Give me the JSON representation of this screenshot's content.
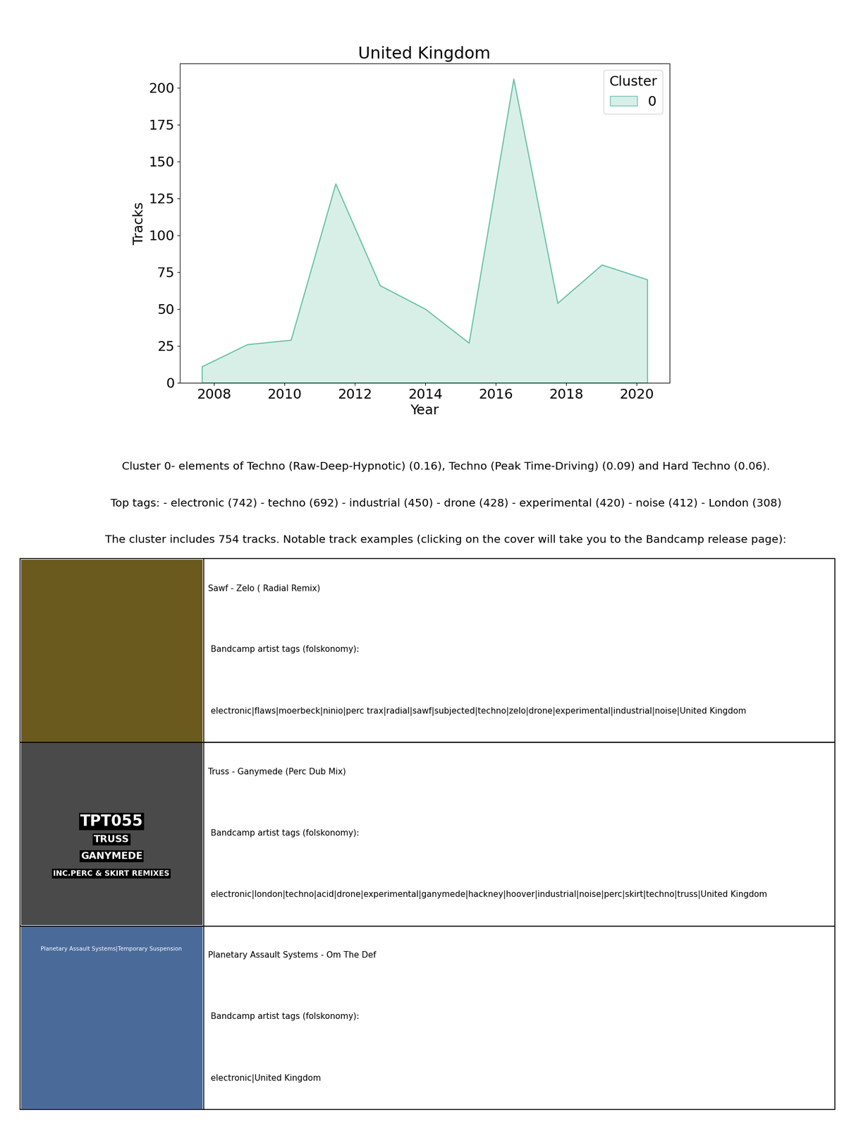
{
  "chart_data": {
    "type": "area",
    "title": "United Kingdom",
    "x_label": "Year",
    "y_label": "Tracks",
    "x": [
      2007.65,
      2008.94,
      2010.18,
      2011.45,
      2012.71,
      2014.0,
      2015.24,
      2016.51,
      2017.76,
      2019.02,
      2020.31
    ],
    "series": [
      {
        "name": "0",
        "color": "#66c2a5",
        "values": [
          11,
          26,
          29,
          135,
          66,
          50,
          27,
          206,
          54,
          80,
          70
        ]
      }
    ],
    "xlim": [
      2007.02,
      2020.94
    ],
    "ylim": [
      0,
      216.6
    ],
    "xticks": [
      2008,
      2010,
      2012,
      2014,
      2016,
      2018,
      2020
    ],
    "yticks": [
      0,
      25,
      50,
      75,
      100,
      125,
      150,
      175,
      200
    ],
    "legend": "upper right",
    "legend_title": "Cluster"
  },
  "document": {
    "description": [
      "Cluster 0- elements of Techno (Raw-Deep-Hypnotic) (0.16), Techno (Peak Time-Driving) (0.09) and Hard Techno (0.06).",
      "Top tags: - electronic (742) - techno (692) - industrial (450) - drone (428) - experimental (420) - noise (412) - London (308)",
      "The cluster includes 754 tracks. Notable track examples (clicking on the cover will take you to the Bandcamp release page):"
    ],
    "tracks": [
      {
        "title": "Sawf - Zelo ( Radial Remix)",
        "tags_label": "Bandcamp artist tags (folskonomy):",
        "tags": "electronic|flaws|moerbeck|ninio|perc trax|radial|sawf|subjected|techno|zelo|drone|experimental|industrial|noise|United Kingdom"
      },
      {
        "title": "Truss - Ganymede (Perc Dub Mix)",
        "tags_label": "Bandcamp artist tags (folskonomy):",
        "tags": "electronic|london|techno|acid|drone|experimental|ganymede|hackney|hoover|industrial|noise|perc|skirt|techno|truss|United Kingdom",
        "cover_text": [
          "TPT055",
          "TRUSS",
          "GANYMEDE",
          "INC.PERC & SKIRT REMIXES"
        ]
      },
      {
        "title": "Planetary Assault Systems - Om The Def",
        "tags_label": "Bandcamp artist tags (folskonomy):",
        "tags": "electronic|United Kingdom",
        "cover_text": [
          "Planetary Assault Systems|Temporary Suspension"
        ]
      }
    ]
  }
}
